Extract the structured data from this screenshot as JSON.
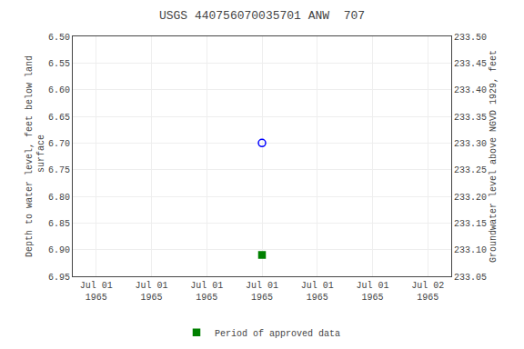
{
  "chart_data": {
    "type": "scatter",
    "title": "USGS 440756070035701 ANW  707",
    "ylabel": "Depth to water level, feet below land\n surface",
    "y2label": "Groundwater level above NGVD 1929, feet",
    "categories": [
      "Jul 01\n1965",
      "Jul 01\n1965",
      "Jul 01\n1965",
      "Jul 01\n1965",
      "Jul 01\n1965",
      "Jul 01\n1965",
      "Jul 02\n1965"
    ],
    "series": [
      {
        "values": [
          null,
          null,
          null,
          6.7,
          null,
          null,
          null
        ],
        "color": "blue",
        "marker": "circle-open"
      },
      {
        "name": "Period of approved data",
        "values": [
          null,
          null,
          null,
          6.91,
          null,
          null,
          null
        ],
        "color": "green",
        "marker": "square"
      }
    ],
    "ylim": [
      6.95,
      6.5
    ],
    "yticks": [
      {
        "value": 6.5,
        "label": "6.50"
      },
      6.55,
      {
        "value": 6.6,
        "label": "6.60"
      },
      6.65,
      {
        "value": 6.7,
        "label": "6.70"
      },
      6.75,
      {
        "value": 6.8,
        "label": "6.80"
      },
      6.85,
      {
        "value": 6.9,
        "label": "6.90"
      },
      6.95
    ],
    "y2lim": [
      233.05,
      233.5
    ],
    "y2ticks": [
      {
        "value": 233.5,
        "label": "233.50"
      },
      233.45,
      {
        "value": 233.4,
        "label": "233.40"
      },
      233.35,
      {
        "value": 233.3,
        "label": "233.30"
      },
      233.25,
      {
        "value": 233.2,
        "label": "233.20"
      },
      233.15,
      {
        "value": 233.1,
        "label": "233.10"
      },
      233.05
    ],
    "grid": true,
    "legend": "bottom"
  }
}
